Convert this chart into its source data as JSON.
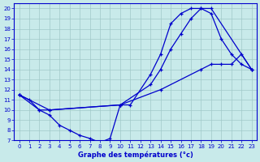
{
  "line1_x": [
    0,
    1,
    2,
    3,
    10,
    11,
    13,
    14,
    15,
    16,
    17,
    18,
    19,
    20,
    21,
    22,
    23
  ],
  "line1_y": [
    11.5,
    11.0,
    10.0,
    10.0,
    10.5,
    10.5,
    13.5,
    15.5,
    18.5,
    19.5,
    20.0,
    20.0,
    19.5,
    17.0,
    15.5,
    14.5,
    14.0
  ],
  "line2_x": [
    0,
    3,
    10,
    13,
    14,
    15,
    16,
    17,
    18,
    19,
    23
  ],
  "line2_y": [
    11.5,
    10.0,
    10.5,
    12.5,
    14.0,
    16.0,
    17.5,
    19.0,
    20.0,
    20.0,
    14.0
  ],
  "line3_x": [
    0,
    2,
    3,
    4,
    5,
    6,
    7,
    8,
    9,
    10,
    14,
    18,
    19,
    20,
    21,
    22,
    23
  ],
  "line3_y": [
    11.5,
    10.0,
    9.5,
    8.5,
    8.0,
    7.5,
    7.2,
    6.8,
    7.2,
    10.5,
    12.0,
    14.0,
    14.5,
    14.5,
    14.5,
    15.5,
    14.0
  ],
  "color": "#0000cc",
  "bg_color": "#c8eaea",
  "grid_color": "#a0c8c8",
  "xlabel": "Graphe des températures (°c)",
  "xlim": [
    -0.5,
    23.5
  ],
  "ylim": [
    7,
    20.5
  ],
  "xticks": [
    0,
    1,
    2,
    3,
    4,
    5,
    6,
    7,
    8,
    9,
    10,
    11,
    12,
    13,
    14,
    15,
    16,
    17,
    18,
    19,
    20,
    21,
    22,
    23
  ],
  "yticks": [
    7,
    8,
    9,
    10,
    11,
    12,
    13,
    14,
    15,
    16,
    17,
    18,
    19,
    20
  ]
}
